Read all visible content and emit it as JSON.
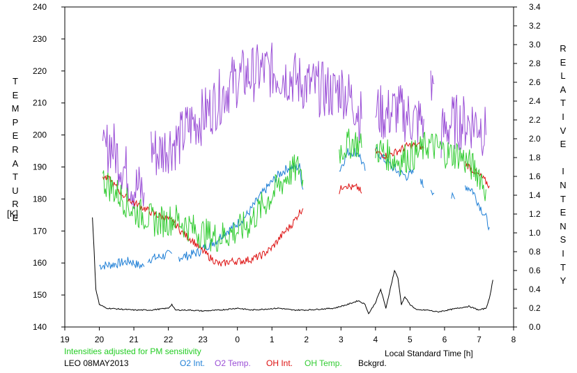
{
  "colors": {
    "O2 Int.": "#1f7fd6",
    "O2 Temp.": "#9a4fd6",
    "OH Int.": "#dd1111",
    "OH Temp.": "#33cc33",
    "Bckgrd.": "#000000",
    "note": "#22cc22"
  },
  "left_axis_label": "TEMPERATURE",
  "left_axis_unit": "[K]",
  "right_axis_label": "RELATIVE INTENSITY",
  "note": "Intensities adjusted for PM sensitivity",
  "station": "LEO 08MAY2013",
  "chart_data": {
    "type": "line",
    "xlabel": "Local Standard Time [h]",
    "x_ticks": [
      "19",
      "20",
      "21",
      "22",
      "23",
      "0",
      "1",
      "2",
      "3",
      "4",
      "5",
      "6",
      "7",
      "8"
    ],
    "xlim": [
      19,
      32
    ],
    "y_left": {
      "ticks": [
        "140",
        "150",
        "160",
        "170",
        "180",
        "190",
        "200",
        "210",
        "220",
        "230",
        "240"
      ],
      "ylim": [
        140,
        240
      ]
    },
    "y_right": {
      "ticks": [
        "0.0",
        "0.2",
        "0.4",
        "0.6",
        "0.8",
        "1.0",
        "1.2",
        "1.4",
        "1.6",
        "1.8",
        "2.0",
        "2.2",
        "2.4",
        "2.6",
        "2.8",
        "3.0",
        "3.2",
        "3.4"
      ],
      "ylim": [
        0,
        3.4
      ]
    },
    "series": [
      {
        "name": "O2 Int.",
        "axis": "right",
        "segments": [
          [
            [
              20.0,
              0.65
            ],
            [
              20.3,
              0.66
            ],
            [
              20.6,
              0.68
            ],
            [
              20.9,
              0.7
            ],
            [
              21.1,
              0.66
            ],
            [
              21.3,
              0.64
            ]
          ],
          [
            [
              21.4,
              0.72
            ],
            [
              21.7,
              0.74
            ],
            [
              21.9,
              0.76
            ],
            [
              22.1,
              0.78
            ]
          ],
          [
            [
              22.3,
              0.74
            ],
            [
              22.6,
              0.76
            ],
            [
              22.9,
              0.8
            ],
            [
              23.1,
              0.86
            ],
            [
              23.4,
              0.92
            ],
            [
              23.6,
              1.0
            ],
            [
              23.8,
              1.04
            ],
            [
              24.0,
              1.1
            ],
            [
              24.3,
              1.2
            ],
            [
              24.6,
              1.36
            ],
            [
              24.9,
              1.5
            ],
            [
              25.2,
              1.62
            ],
            [
              25.5,
              1.7
            ],
            [
              25.8,
              1.7
            ],
            [
              25.9,
              1.46
            ]
          ],
          [
            [
              26.95,
              1.66
            ],
            [
              27.2,
              1.86
            ],
            [
              27.5,
              1.86
            ],
            [
              27.7,
              1.66
            ]
          ],
          [
            [
              28.0,
              1.88
            ],
            [
              28.3,
              1.76
            ],
            [
              28.6,
              1.66
            ],
            [
              28.9,
              1.6
            ],
            [
              29.1,
              1.64
            ]
          ],
          [
            [
              29.3,
              1.58
            ],
            [
              29.4,
              1.48
            ]
          ],
          [
            [
              29.6,
              1.48
            ],
            [
              29.7,
              1.42
            ]
          ],
          [
            [
              30.2,
              1.38
            ],
            [
              30.3,
              1.36
            ]
          ],
          [
            [
              30.6,
              1.5
            ],
            [
              30.8,
              1.46
            ],
            [
              31.0,
              1.3
            ],
            [
              31.2,
              1.16
            ],
            [
              31.3,
              1.06
            ]
          ]
        ]
      },
      {
        "name": "O2 Temp.",
        "axis": "left",
        "segments": [
          [
            [
              20.1,
              192
            ],
            [
              20.3,
              198
            ],
            [
              20.5,
              194
            ],
            [
              20.7,
              190
            ],
            [
              21.0,
              184
            ],
            [
              21.3,
              182
            ]
          ],
          [
            [
              21.5,
              196
            ],
            [
              21.7,
              194
            ],
            [
              22.0,
              197
            ],
            [
              22.3,
              198
            ],
            [
              22.6,
              203
            ],
            [
              22.9,
              205
            ],
            [
              23.2,
              208
            ],
            [
              23.5,
              212
            ],
            [
              23.8,
              216
            ],
            [
              24.1,
              218
            ],
            [
              24.4,
              219
            ],
            [
              24.7,
              220
            ],
            [
              25.0,
              220
            ],
            [
              25.3,
              219
            ],
            [
              25.6,
              218
            ],
            [
              25.9,
              216
            ],
            [
              26.2,
              215
            ],
            [
              26.5,
              214
            ],
            [
              26.8,
              213
            ],
            [
              27.0,
              215
            ],
            [
              27.2,
              212
            ],
            [
              27.4,
              210
            ],
            [
              27.6,
              205
            ]
          ],
          [
            [
              28.0,
              208
            ],
            [
              28.3,
              206
            ],
            [
              28.6,
              208
            ],
            [
              28.9,
              206
            ],
            [
              29.2,
              204
            ],
            [
              29.4,
              205
            ]
          ],
          [
            [
              29.6,
              214
            ],
            [
              29.7,
              216
            ]
          ],
          [
            [
              29.9,
              200
            ],
            [
              30.2,
              204
            ],
            [
              30.5,
              204
            ],
            [
              30.8,
              204
            ],
            [
              31.0,
              204
            ],
            [
              31.2,
              200
            ]
          ]
        ]
      },
      {
        "name": "OH Int.",
        "axis": "right",
        "segments": [
          [
            [
              20.1,
              1.6
            ],
            [
              20.3,
              1.56
            ],
            [
              20.5,
              1.48
            ],
            [
              20.7,
              1.4
            ],
            [
              21.0,
              1.32
            ],
            [
              21.3,
              1.26
            ],
            [
              21.6,
              1.2
            ],
            [
              21.9,
              1.16
            ],
            [
              22.2,
              1.1
            ],
            [
              22.4,
              1.0
            ],
            [
              22.7,
              0.92
            ],
            [
              22.9,
              0.84
            ],
            [
              23.2,
              0.74
            ],
            [
              23.5,
              0.66
            ],
            [
              23.8,
              0.7
            ],
            [
              24.1,
              0.7
            ],
            [
              24.4,
              0.72
            ],
            [
              24.7,
              0.76
            ],
            [
              25.0,
              0.84
            ],
            [
              25.3,
              0.98
            ],
            [
              25.6,
              1.1
            ],
            [
              25.8,
              1.22
            ],
            [
              25.9,
              1.26
            ]
          ],
          [
            [
              26.95,
              1.44
            ],
            [
              27.1,
              1.52
            ],
            [
              27.3,
              1.48
            ],
            [
              27.5,
              1.48
            ],
            [
              27.6,
              1.42
            ]
          ],
          [
            [
              28.0,
              1.86
            ],
            [
              28.3,
              1.82
            ],
            [
              28.6,
              1.86
            ],
            [
              28.9,
              1.92
            ],
            [
              29.2,
              1.94
            ],
            [
              29.4,
              1.9
            ]
          ],
          [
            [
              30.6,
              1.74
            ],
            [
              30.9,
              1.64
            ],
            [
              31.1,
              1.58
            ],
            [
              31.3,
              1.5
            ]
          ]
        ]
      },
      {
        "name": "OH Temp.",
        "axis": "left",
        "segments": [
          [
            [
              20.1,
              186
            ],
            [
              20.3,
              184
            ],
            [
              20.5,
              182
            ],
            [
              20.7,
              180
            ],
            [
              21.0,
              176
            ],
            [
              21.3,
              175
            ],
            [
              21.6,
              173
            ],
            [
              21.9,
              173
            ],
            [
              22.2,
              174
            ],
            [
              22.5,
              172
            ],
            [
              22.8,
              170
            ],
            [
              23.1,
              169
            ],
            [
              23.4,
              168
            ],
            [
              23.7,
              169
            ],
            [
              24.0,
              170
            ],
            [
              24.3,
              172
            ],
            [
              24.6,
              176
            ],
            [
              24.9,
              180
            ],
            [
              25.2,
              184
            ],
            [
              25.5,
              188
            ],
            [
              25.8,
              190
            ],
            [
              25.9,
              186
            ]
          ],
          [
            [
              26.95,
              195
            ],
            [
              27.2,
              197
            ],
            [
              27.4,
              198
            ],
            [
              27.6,
              196
            ]
          ],
          [
            [
              28.0,
              196
            ],
            [
              28.3,
              194
            ],
            [
              28.6,
              192
            ],
            [
              28.9,
              193
            ],
            [
              29.2,
              194
            ],
            [
              29.5,
              197
            ],
            [
              29.8,
              196
            ],
            [
              30.1,
              194
            ],
            [
              30.4,
              194
            ],
            [
              30.7,
              191
            ],
            [
              31.0,
              188
            ],
            [
              31.2,
              183
            ]
          ]
        ]
      },
      {
        "name": "Bckgrd.",
        "axis": "right",
        "segments": [
          [
            [
              19.8,
              1.16
            ],
            [
              19.85,
              0.8
            ],
            [
              19.9,
              0.4
            ],
            [
              20.0,
              0.24
            ],
            [
              20.2,
              0.2
            ],
            [
              20.6,
              0.19
            ],
            [
              21.0,
              0.18
            ],
            [
              21.5,
              0.18
            ],
            [
              22.0,
              0.2
            ],
            [
              22.1,
              0.24
            ],
            [
              22.2,
              0.18
            ],
            [
              22.6,
              0.18
            ],
            [
              23.0,
              0.17
            ],
            [
              23.5,
              0.18
            ],
            [
              24.0,
              0.2
            ],
            [
              24.4,
              0.18
            ],
            [
              24.8,
              0.19
            ],
            [
              25.2,
              0.2
            ],
            [
              25.6,
              0.18
            ],
            [
              26.0,
              0.18
            ],
            [
              26.4,
              0.19
            ],
            [
              26.8,
              0.2
            ],
            [
              27.2,
              0.24
            ],
            [
              27.5,
              0.28
            ],
            [
              27.7,
              0.24
            ],
            [
              27.8,
              0.14
            ],
            [
              27.9,
              0.2
            ],
            [
              28.0,
              0.26
            ],
            [
              28.15,
              0.4
            ],
            [
              28.3,
              0.2
            ],
            [
              28.45,
              0.44
            ],
            [
              28.55,
              0.6
            ],
            [
              28.65,
              0.52
            ],
            [
              28.75,
              0.24
            ],
            [
              28.85,
              0.32
            ],
            [
              29.0,
              0.24
            ],
            [
              29.2,
              0.18
            ],
            [
              29.5,
              0.18
            ],
            [
              29.8,
              0.16
            ],
            [
              30.1,
              0.18
            ],
            [
              30.4,
              0.2
            ],
            [
              30.7,
              0.22
            ],
            [
              31.0,
              0.18
            ],
            [
              31.2,
              0.2
            ],
            [
              31.3,
              0.3
            ],
            [
              31.4,
              0.5
            ]
          ]
        ]
      }
    ]
  }
}
